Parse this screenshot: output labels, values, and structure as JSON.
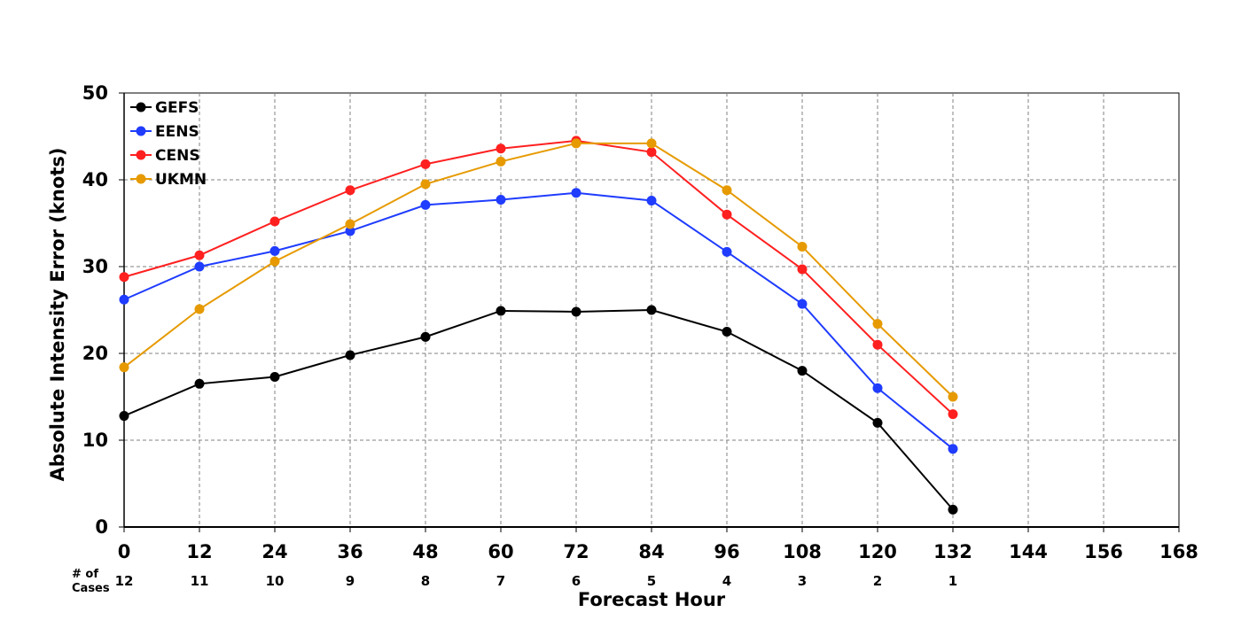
{
  "chart_data": {
    "type": "line",
    "title": "",
    "xlabel": "Forecast Hour",
    "ylabel": "Absolute Intensity Error (knots)",
    "xlim": [
      0,
      168
    ],
    "ylim": [
      0,
      50
    ],
    "x_ticks": [
      0,
      12,
      24,
      36,
      48,
      60,
      72,
      84,
      96,
      108,
      120,
      132,
      144,
      156,
      168
    ],
    "y_ticks": [
      0,
      10,
      20,
      30,
      40,
      50
    ],
    "grid": true,
    "legend_position": "top-left",
    "cases_header": [
      "# of",
      "Cases"
    ],
    "cases": [
      {
        "x": 0,
        "n": "12"
      },
      {
        "x": 12,
        "n": "11"
      },
      {
        "x": 24,
        "n": "10"
      },
      {
        "x": 36,
        "n": "9"
      },
      {
        "x": 48,
        "n": "8"
      },
      {
        "x": 60,
        "n": "7"
      },
      {
        "x": 72,
        "n": "6"
      },
      {
        "x": 84,
        "n": "5"
      },
      {
        "x": 96,
        "n": "4"
      },
      {
        "x": 108,
        "n": "3"
      },
      {
        "x": 120,
        "n": "2"
      },
      {
        "x": 132,
        "n": "1"
      }
    ],
    "x": [
      0,
      12,
      24,
      36,
      48,
      60,
      72,
      84,
      96,
      108,
      120,
      132
    ],
    "series": [
      {
        "name": "GEFS",
        "color": "#000000",
        "values": [
          12.8,
          16.5,
          17.3,
          19.8,
          21.9,
          24.9,
          24.8,
          25.0,
          22.5,
          18.0,
          12.0,
          2.0
        ]
      },
      {
        "name": "EENS",
        "color": "#1f3cff",
        "values": [
          26.2,
          30.0,
          31.8,
          34.1,
          37.1,
          37.7,
          38.5,
          37.6,
          31.7,
          25.7,
          16.0,
          9.0
        ]
      },
      {
        "name": "CENS",
        "color": "#ff2020",
        "values": [
          28.8,
          31.3,
          35.2,
          38.8,
          41.8,
          43.6,
          44.5,
          43.2,
          36.0,
          29.7,
          21.0,
          13.0
        ]
      },
      {
        "name": "UKMN",
        "color": "#e69a00",
        "values": [
          18.4,
          25.1,
          30.6,
          34.9,
          39.5,
          42.1,
          44.2,
          44.2,
          38.8,
          32.3,
          23.4,
          15.0
        ]
      }
    ]
  }
}
